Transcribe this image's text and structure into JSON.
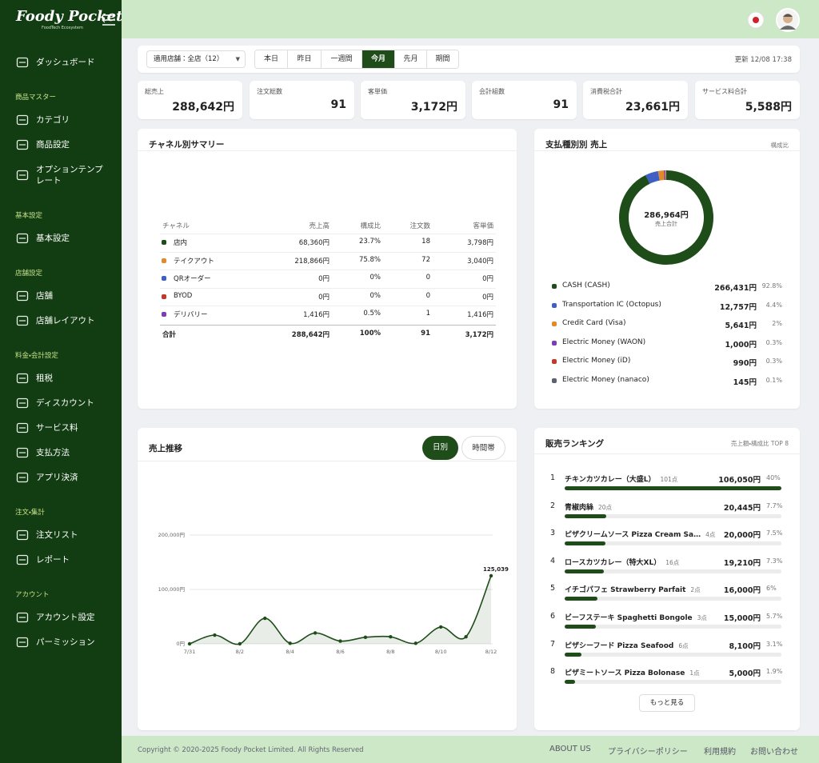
{
  "sidebar": {
    "logo": "Foody Pocket.",
    "logo_sub": "FoodTech Ecosystem",
    "top_items": [
      "ダッシュボード"
    ],
    "sections": [
      {
        "title": "商品マスター",
        "items": [
          "カテゴリ",
          "商品設定",
          "オプションテンプレート"
        ]
      },
      {
        "title": "基本設定",
        "items": [
          "基本設定"
        ]
      },
      {
        "title": "店舗設定",
        "items": [
          "店舗",
          "店舗レイアウト"
        ]
      },
      {
        "title": "料金・会計設定",
        "items": [
          "租税",
          "ディスカウント",
          "サービス料",
          "支払方法",
          "アプリ決済"
        ]
      },
      {
        "title": "注文・集計",
        "items": [
          "注文リスト",
          "レポート"
        ]
      },
      {
        "title": "アカウント",
        "items": [
          "アカウント設定",
          "パーミッション"
        ]
      }
    ]
  },
  "toolbar": {
    "store_select": "適用店舗：全店（12）",
    "periods": [
      "本日",
      "昨日",
      "一週間",
      "今月",
      "先月",
      "期間"
    ],
    "active_period": "今月",
    "updated": "更新 12/08 17:38"
  },
  "kpis": [
    {
      "label": "総売上",
      "value": "288,642円"
    },
    {
      "label": "注文総数",
      "value": "91"
    },
    {
      "label": "客単価",
      "value": "3,172円"
    },
    {
      "label": "会計組数",
      "value": "91"
    },
    {
      "label": "消費税合計",
      "value": "23,661円"
    },
    {
      "label": "サービス料合計",
      "value": "5,588円"
    }
  ],
  "channel_summary": {
    "title": "チャネル別サマリー",
    "headers": [
      "チャネル",
      "売上高",
      "構成比",
      "注文数",
      "客単価"
    ],
    "rows": [
      {
        "color": "#1e4d1a",
        "cells": [
          "店内",
          "68,360円",
          "23.7%",
          "18",
          "3,798円"
        ]
      },
      {
        "color": "#e08a2c",
        "cells": [
          "テイクアウト",
          "218,866円",
          "75.8%",
          "72",
          "3,040円"
        ]
      },
      {
        "color": "#3f5fc4",
        "cells": [
          "QRオーダー",
          "0円",
          "0%",
          "0",
          "0円"
        ]
      },
      {
        "color": "#c0392b",
        "cells": [
          "BYOD",
          "0円",
          "0%",
          "0",
          "0円"
        ]
      },
      {
        "color": "#7b3fb0",
        "cells": [
          "デリバリー",
          "1,416円",
          "0.5%",
          "1",
          "1,416円"
        ]
      }
    ],
    "total": [
      "合計",
      "288,642円",
      "100%",
      "91",
      "3,172円"
    ]
  },
  "payment": {
    "title": "支払種別別 売上",
    "note": "構成比",
    "total": "286,964円",
    "total_label": "売上合計",
    "items": [
      {
        "name": "CASH (CASH)",
        "color": "#1e4d1a",
        "amount": "266,431円",
        "share": 92.8,
        "share_label": "92.8%"
      },
      {
        "name": "Transportation IC (Octopus)",
        "color": "#3f5fc4",
        "amount": "12,757円",
        "share": 4.4,
        "share_label": "4.4%"
      },
      {
        "name": "Credit Card (Visa)",
        "color": "#e08a2c",
        "amount": "5,641円",
        "share": 2,
        "share_label": "2%"
      },
      {
        "name": "Electric Money (WAON)",
        "color": "#7b3fb0",
        "amount": "1,000円",
        "share": 0.3,
        "share_label": "0.3%"
      },
      {
        "name": "Electric Money (iD)",
        "color": "#c0392b",
        "amount": "990円",
        "share": 0.3,
        "share_label": "0.3%"
      },
      {
        "name": "Electric Money (nanaco)",
        "color": "#5b6170",
        "amount": "145円",
        "share": 0.1,
        "share_label": "0.1%"
      }
    ]
  },
  "sales_trend": {
    "toggles": [
      "日別",
      "時間帯"
    ],
    "active_toggle": "日別"
  },
  "chart_data": {
    "type": "line",
    "title": "売上推移",
    "categories": [
      "7/31",
      null,
      "8/2",
      null,
      "8/4",
      null,
      "8/6",
      null,
      "8/8",
      null,
      "8/10",
      null,
      "8/12"
    ],
    "values": [
      0,
      16000,
      0,
      47000,
      1000,
      20000,
      5000,
      12000,
      13000,
      1000,
      31000,
      13000,
      125039
    ],
    "annotation": "125,039",
    "color": "#1e4d1a",
    "ylim": [
      0,
      220000
    ],
    "yticks": [
      {
        "value": 0,
        "label": "0円"
      },
      {
        "value": 100000,
        "label": "100,000円"
      },
      {
        "value": 200000,
        "label": "200,000円"
      }
    ],
    "grid": true
  },
  "ranking": {
    "title": "販売ランキング",
    "note": "売上額・構成比 TOP 8",
    "items": [
      {
        "rank": "1",
        "name": "チキンカツカレー（大盛L）",
        "qty": "101点",
        "amount": "106,050円",
        "share": 40,
        "share_label": "40%"
      },
      {
        "rank": "2",
        "name": "青椒肉絲",
        "qty": "20点",
        "amount": "20,445円",
        "share": 7.7,
        "share_label": "7.7%"
      },
      {
        "rank": "3",
        "name": "ピザクリームソース Pizza Cream Sa…",
        "qty": "4点",
        "amount": "20,000円",
        "share": 7.5,
        "share_label": "7.5%"
      },
      {
        "rank": "4",
        "name": "ロースカツカレー（特大XL）",
        "qty": "16点",
        "amount": "19,210円",
        "share": 7.3,
        "share_label": "7.3%"
      },
      {
        "rank": "5",
        "name": "イチゴパフェ Strawberry Parfait",
        "qty": "2点",
        "amount": "16,000円",
        "share": 6,
        "share_label": "6%"
      },
      {
        "rank": "6",
        "name": "ビーフステーキ Spaghetti Bongole",
        "qty": "3点",
        "amount": "15,000円",
        "share": 5.7,
        "share_label": "5.7%"
      },
      {
        "rank": "7",
        "name": "ピザシーフード Pizza Seafood",
        "qty": "6点",
        "amount": "8,100円",
        "share": 3.1,
        "share_label": "3.1%"
      },
      {
        "rank": "8",
        "name": "ピザミートソース Pizza Bolonase",
        "qty": "1点",
        "amount": "5,000円",
        "share": 1.9,
        "share_label": "1.9%"
      }
    ],
    "more": "もっと見る"
  },
  "footer": {
    "copyright": "Copyright © 2020-2025 Foody Pocket Limited. All Rights Reserved",
    "links": [
      "ABOUT US",
      "プライバシーポリシー",
      "利用規約",
      "お問い合わせ"
    ]
  }
}
